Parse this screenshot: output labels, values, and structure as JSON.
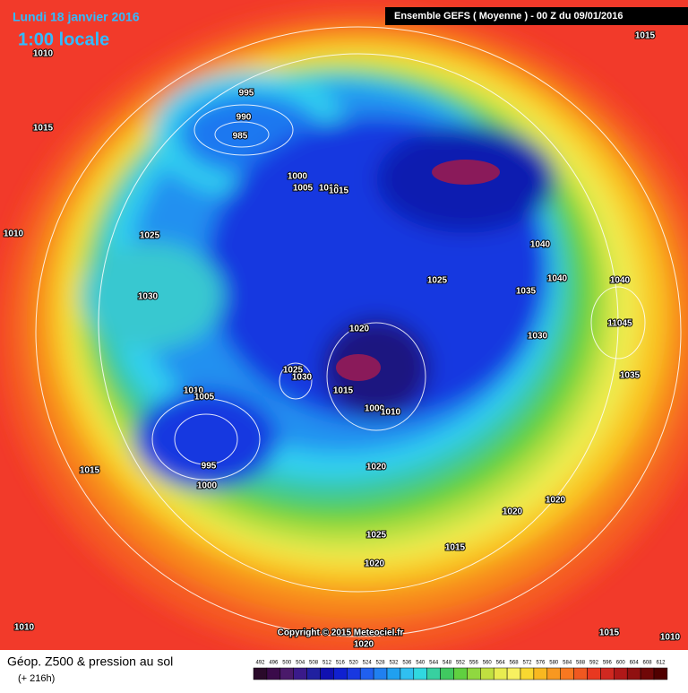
{
  "header": {
    "date": "Lundi 18 janvier 2016",
    "time": "1:00 locale",
    "run": "Ensemble GEFS  ( Moyenne )  -  00 Z du 09/01/2016"
  },
  "map": {
    "pressure_labels": [
      "1015",
      "1010",
      "995",
      "990",
      "985",
      "1015",
      "1000",
      "1005",
      "1010",
      "1015",
      "1025",
      "1010",
      "1040",
      "1030",
      "1025",
      "1035",
      "1040",
      "1040",
      "1020",
      "1030",
      "11045",
      "1035",
      "1025",
      "1030",
      "1015",
      "1010",
      "1005",
      "1000",
      "1010",
      "1015",
      "995",
      "1000",
      "1020",
      "1020",
      "1020",
      "1025",
      "1015",
      "1020",
      "1010",
      "1015",
      "1010",
      "1020"
    ],
    "copyright": "Copyright © 2015 Meteociel.fr"
  },
  "legend": {
    "title": "Géop. Z500 & pression au sol",
    "lead": "(+ 216h)",
    "scale": [
      492,
      496,
      500,
      504,
      508,
      512,
      516,
      520,
      524,
      528,
      532,
      536,
      540,
      544,
      548,
      552,
      556,
      560,
      564,
      568,
      572,
      576,
      580,
      584,
      588,
      592,
      596,
      600,
      604,
      608,
      612
    ]
  }
}
